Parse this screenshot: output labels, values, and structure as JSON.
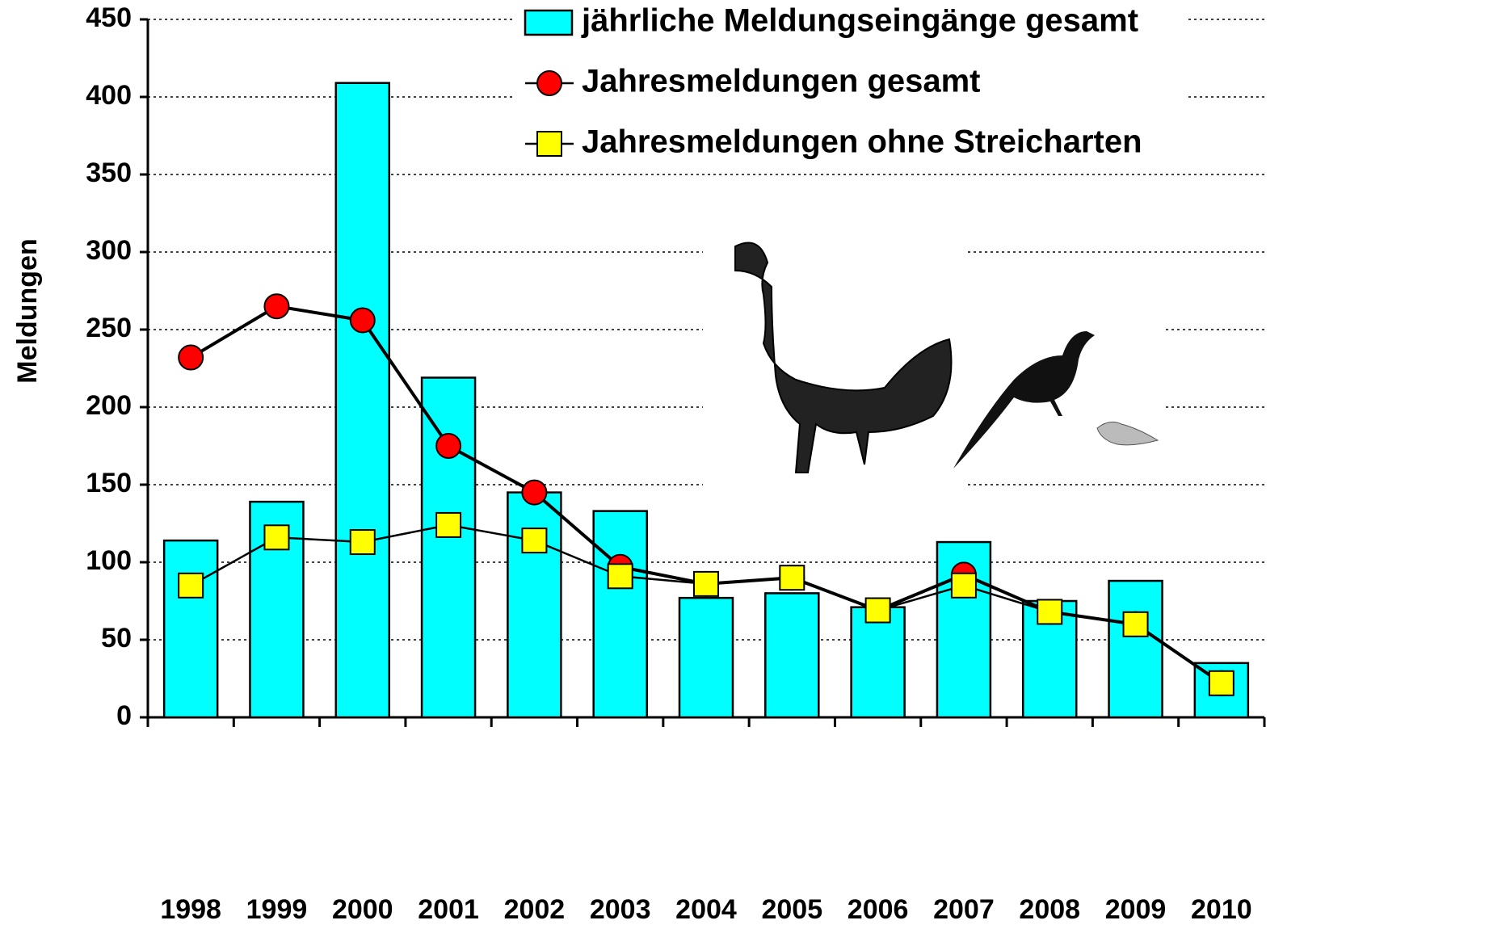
{
  "chart_data": {
    "type": "bar",
    "y_label": "Meldungen",
    "categories": [
      "1998",
      "1999",
      "2000",
      "2001",
      "2002",
      "2003",
      "2004",
      "2005",
      "2006",
      "2007",
      "2008",
      "2009",
      "2010"
    ],
    "series": [
      {
        "name": "jährliche Meldungseingänge gesamt",
        "type": "bar",
        "color": "#00ffff",
        "values": [
          114,
          139,
          409,
          219,
          145,
          133,
          77,
          80,
          71,
          113,
          75,
          88,
          35
        ]
      },
      {
        "name": "Jahresmeldungen gesamt",
        "type": "line",
        "marker": "circle",
        "color": "#ff0000",
        "values": [
          232,
          265,
          256,
          175,
          145,
          97,
          86,
          90,
          69,
          92,
          68,
          60,
          22
        ]
      },
      {
        "name": "Jahresmeldungen ohne Streicharten",
        "type": "line",
        "marker": "square",
        "color": "#ffff00",
        "values": [
          85,
          116,
          113,
          124,
          114,
          91,
          86,
          90,
          69,
          85,
          68,
          60,
          22
        ]
      }
    ],
    "ylim": [
      0,
      450
    ],
    "yticks": [
      0,
      50,
      100,
      150,
      200,
      250,
      300,
      350,
      400,
      450
    ],
    "grid": true
  }
}
